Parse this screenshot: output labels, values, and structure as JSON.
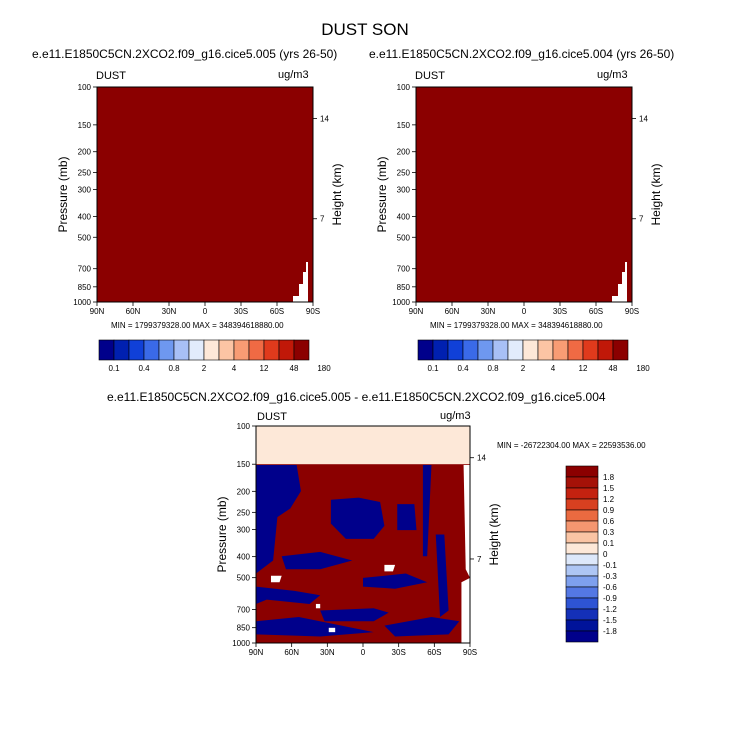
{
  "title": "DUST SON",
  "colors": {
    "dark_red": "#8b0000",
    "dark_blue": "#00008b",
    "pale_peach": "#fde8d8"
  },
  "chart_data": [
    {
      "type": "heatmap",
      "title": "e.e11.E1850C5CN.2XCO2.f09_g16.cice5.005 (yrs 26-50)",
      "left_label": "DUST",
      "right_label": "ug/m3",
      "ylabel": "Pressure (mb)",
      "ylabel_right": "Height (km)",
      "x_ticks": [
        "90N",
        "60N",
        "30N",
        "0",
        "30S",
        "60S",
        "90S"
      ],
      "y_ticks": [
        "100",
        "150",
        "200",
        "250",
        "300",
        "400",
        "500",
        "700",
        "850",
        "1000"
      ],
      "y_right_ticks": [
        "14",
        "7"
      ],
      "stats": "MIN = 1799379328.00   MAX = 348394618880.00",
      "colorbar_labels": [
        "0.1",
        "0.4",
        "0.8",
        "2",
        "4",
        "12",
        "48",
        "180"
      ]
    },
    {
      "type": "heatmap",
      "title": "e.e11.E1850C5CN.2XCO2.f09_g16.cice5.004 (yrs 26-50)",
      "left_label": "DUST",
      "right_label": "ug/m3",
      "ylabel": "Pressure (mb)",
      "ylabel_right": "Height (km)",
      "x_ticks": [
        "90N",
        "60N",
        "30N",
        "0",
        "30S",
        "60S",
        "90S"
      ],
      "y_ticks": [
        "100",
        "150",
        "200",
        "250",
        "300",
        "400",
        "500",
        "700",
        "850",
        "1000"
      ],
      "y_right_ticks": [
        "14",
        "7"
      ],
      "stats": "MIN = 1799379328.00   MAX = 348394618880.00",
      "colorbar_labels": [
        "0.1",
        "0.4",
        "0.8",
        "2",
        "4",
        "12",
        "48",
        "180"
      ]
    },
    {
      "type": "heatmap",
      "title": "e.e11.E1850C5CN.2XCO2.f09_g16.cice5.005 - e.e11.E1850C5CN.2XCO2.f09_g16.cice5.004",
      "left_label": "DUST",
      "right_label": "ug/m3",
      "ylabel": "Pressure (mb)",
      "ylabel_right": "Height (km)",
      "x_ticks": [
        "90N",
        "60N",
        "30N",
        "0",
        "30S",
        "60S",
        "90S"
      ],
      "y_ticks": [
        "100",
        "150",
        "200",
        "250",
        "300",
        "400",
        "500",
        "700",
        "850",
        "1000"
      ],
      "y_right_ticks": [
        "14",
        "7"
      ],
      "stats": "MIN = -26722304.00   MAX = 22593536.00",
      "colorbar_labels": [
        "1.8",
        "1.5",
        "1.2",
        "0.9",
        "0.6",
        "0.3",
        "0.1",
        "0",
        "-0.1",
        "-0.3",
        "-0.6",
        "-0.9",
        "-1.2",
        "-1.5",
        "-1.8"
      ]
    }
  ]
}
